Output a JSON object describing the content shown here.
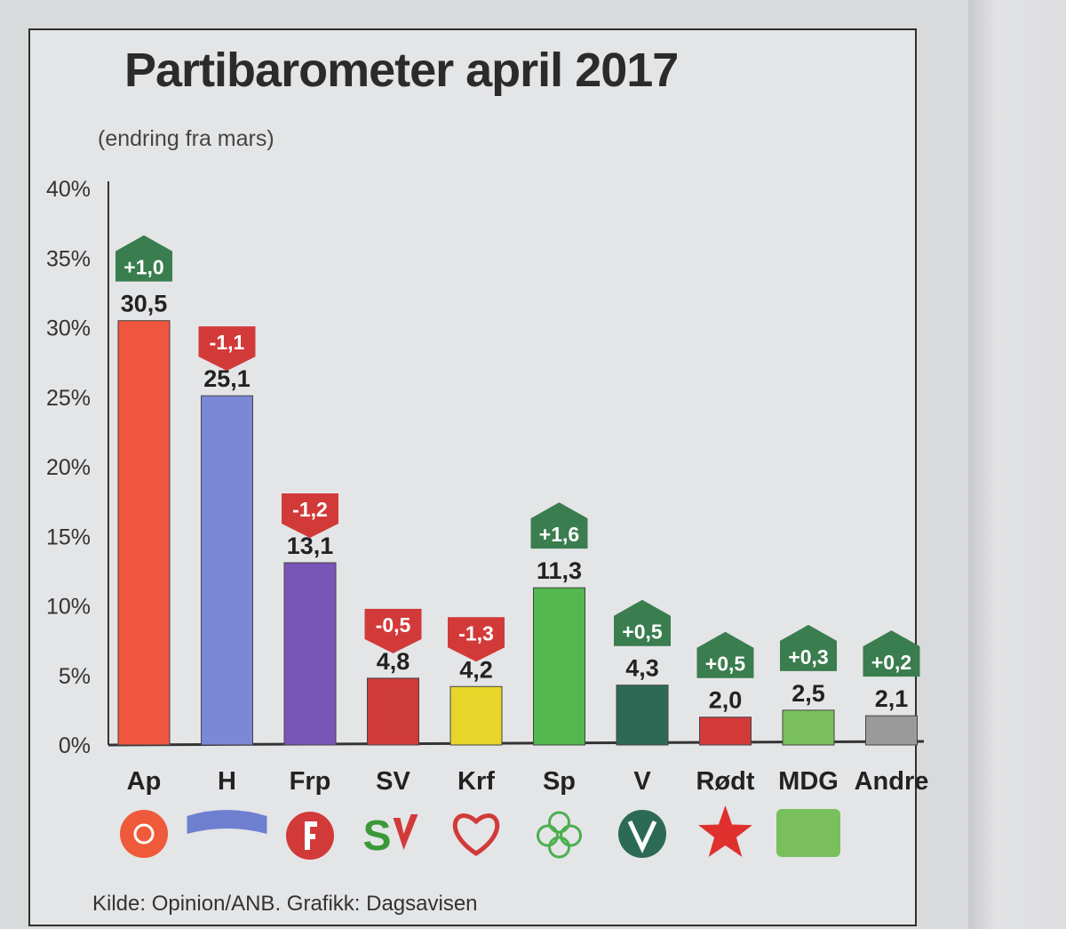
{
  "title": "Partibarometer april 2017",
  "subtitle": "(endring fra mars)",
  "source": "Kilde: Opinion/ANB. Grafikk: Dagsavisen",
  "colors": {
    "increase": "#3a7d4f",
    "decrease": "#d23a3a",
    "axis": "#333333"
  },
  "chart_data": {
    "type": "bar",
    "title": "Partibarometer april 2017",
    "subtitle": "(endring fra mars)",
    "y_ticks": [
      "0%",
      "5%",
      "10%",
      "15%",
      "20%",
      "25%",
      "30%",
      "35%",
      "40%"
    ],
    "ylim": [
      0,
      40
    ],
    "grid": false,
    "categories": [
      "Ap",
      "H",
      "Frp",
      "SV",
      "Krf",
      "Sp",
      "V",
      "Rødt",
      "MDG",
      "Andre"
    ],
    "values": [
      30.5,
      25.1,
      13.1,
      4.8,
      4.2,
      11.3,
      4.3,
      2.0,
      2.5,
      2.1
    ],
    "value_labels": [
      "30,5",
      "25,1",
      "13,1",
      "4,8",
      "4,2",
      "11,3",
      "4,3",
      "2,0",
      "2,5",
      "2,1"
    ],
    "change": [
      1.0,
      -1.1,
      -1.2,
      -0.5,
      -1.3,
      1.6,
      0.5,
      0.5,
      0.3,
      0.2
    ],
    "change_labels": [
      "+1,0",
      "-1,1",
      "-1,2",
      "-0,5",
      "-1,3",
      "+1,6",
      "+0,5",
      "+0,5",
      "+0,3",
      "+0,2"
    ],
    "bar_colors": [
      "#f0553d",
      "#7b88d6",
      "#7a55b8",
      "#cf3b38",
      "#e8d52a",
      "#52b84f",
      "#2c6a55",
      "#d23a3a",
      "#79c05c",
      "#9a9a9a"
    ],
    "logos": [
      "rose-logo",
      "hoyre-ribbon-logo",
      "apple-logo",
      "sv-logo",
      "krf-logo",
      "clover-logo",
      "v-circle-logo",
      "star-logo",
      "mdg-logo",
      ""
    ]
  }
}
